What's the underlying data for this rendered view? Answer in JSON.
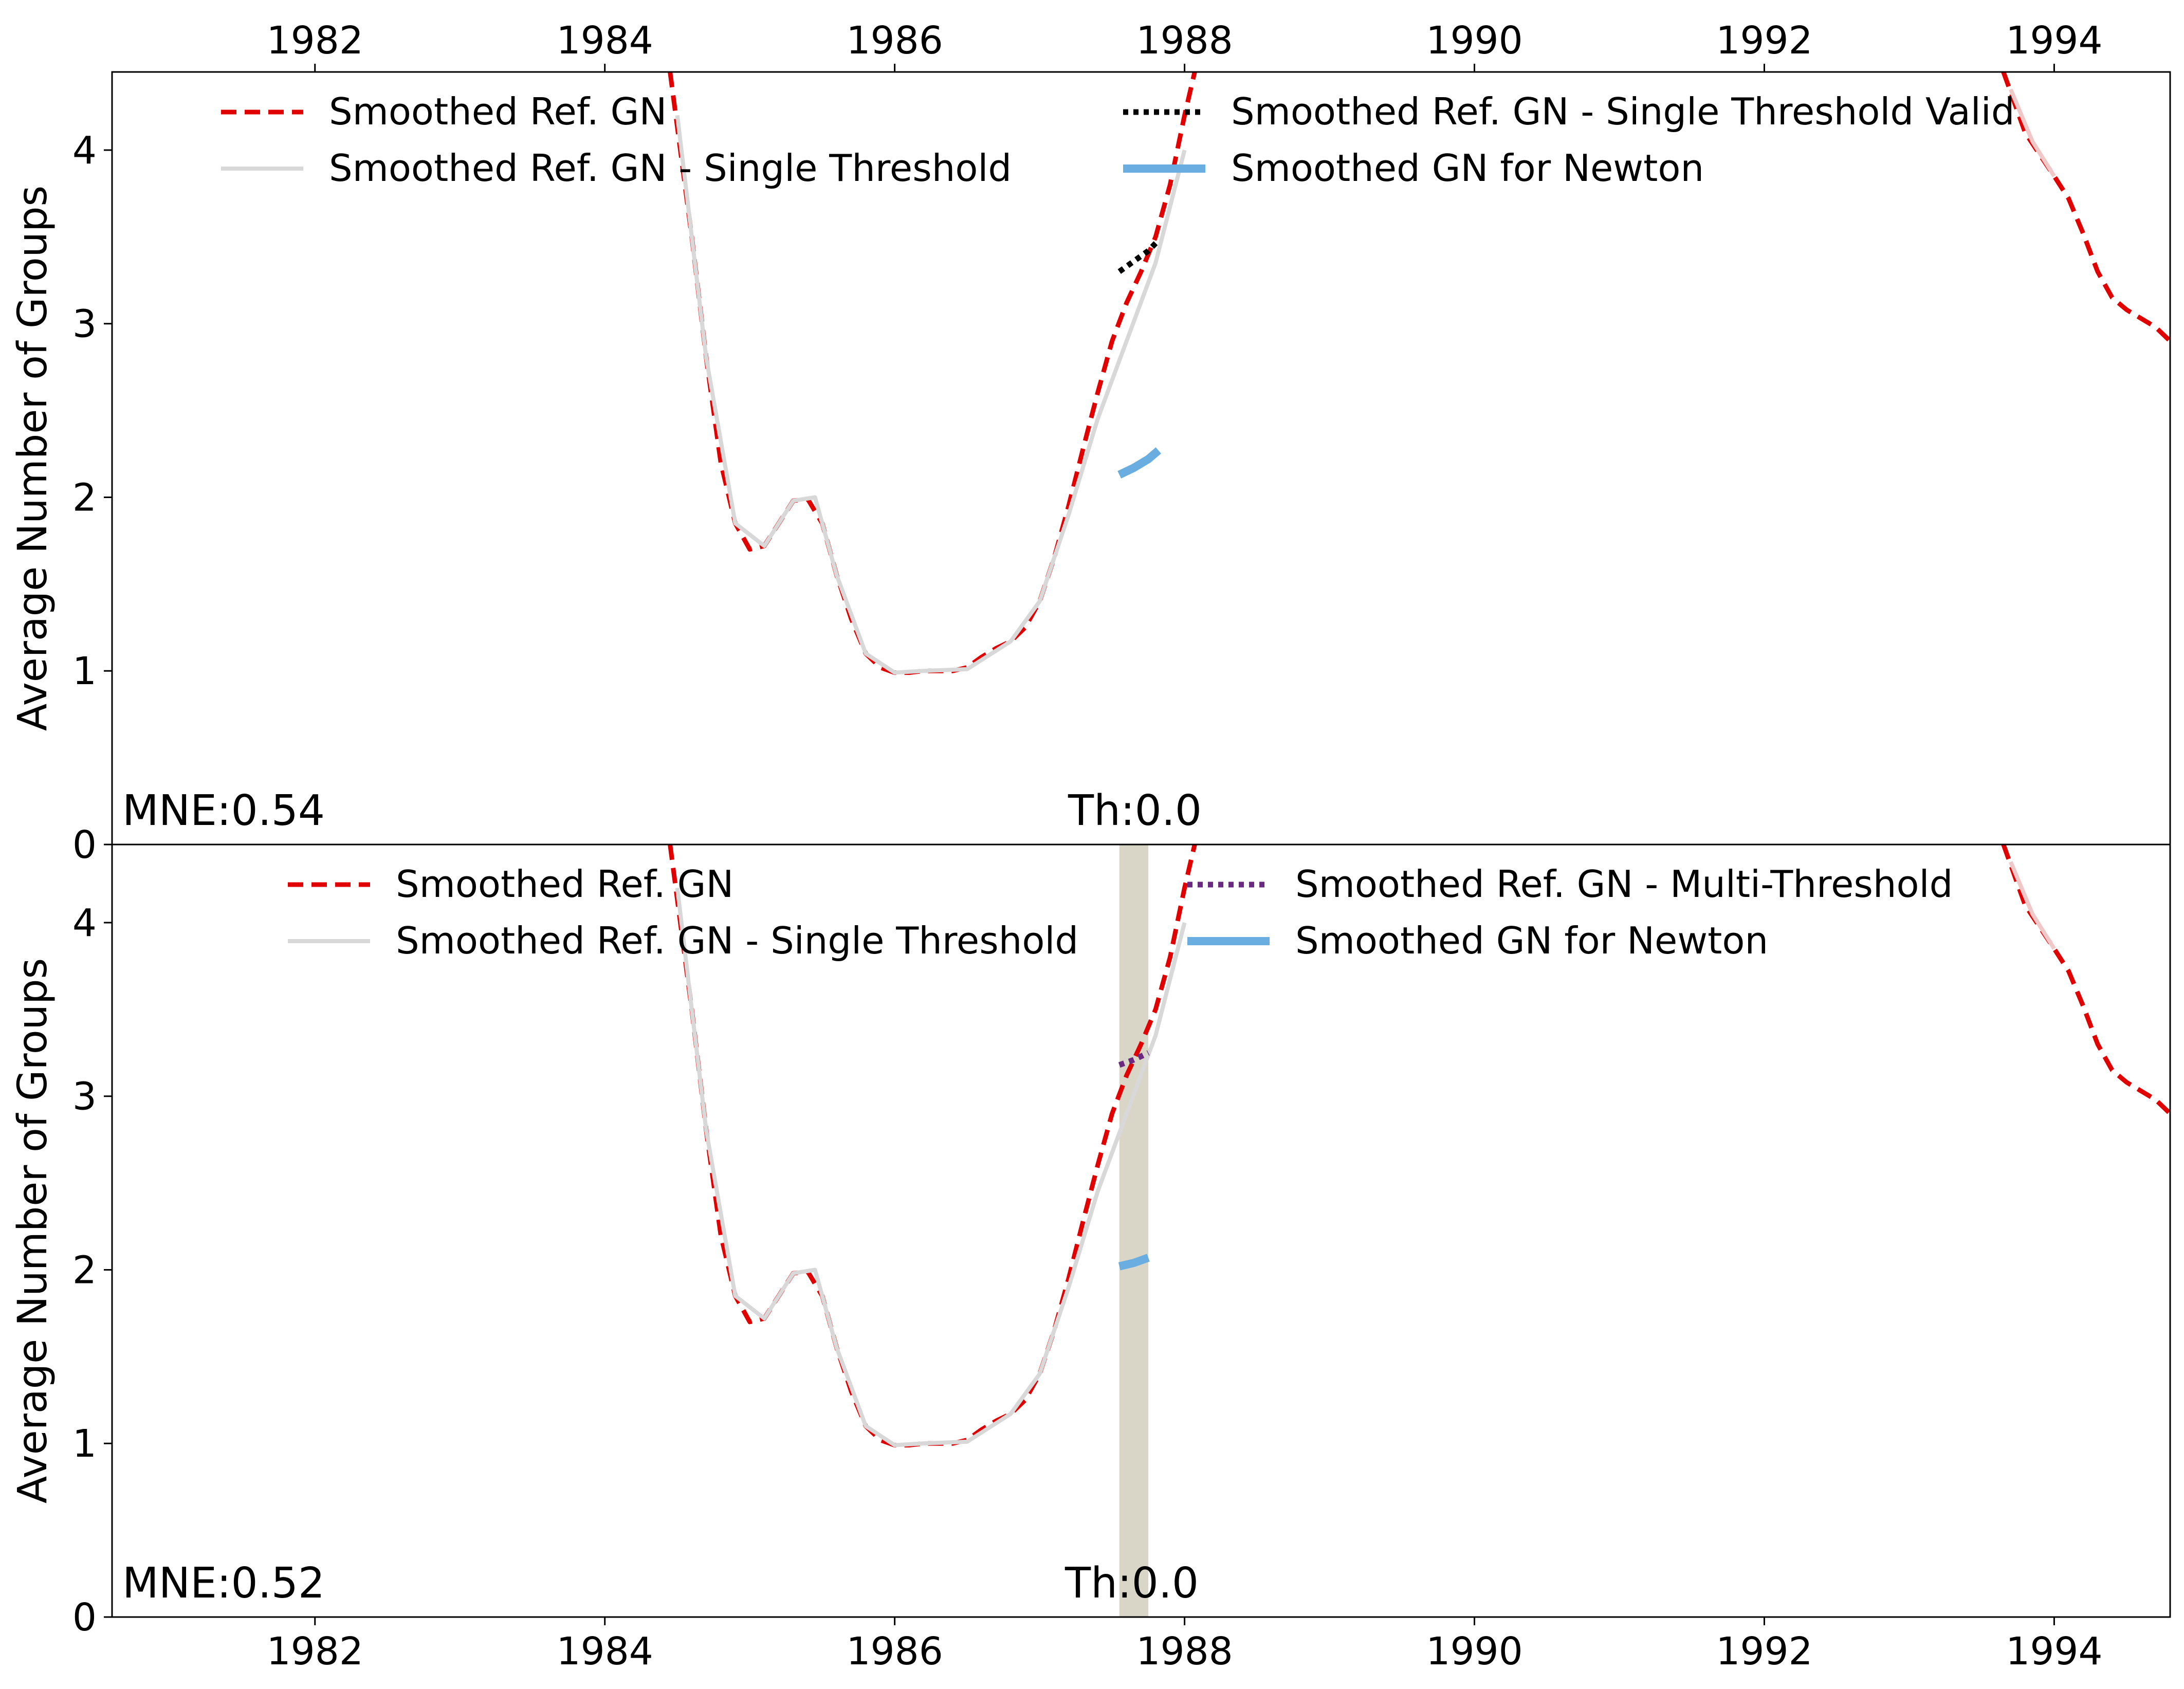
{
  "chart_data": [
    {
      "type": "line",
      "panel": "top",
      "xlabel": "",
      "ylabel": "Average Number of Groups",
      "xlim": [
        1980.6,
        1994.8
      ],
      "ylim": [
        0,
        4.45
      ],
      "xticks": [
        1982,
        1984,
        1986,
        1988,
        1990,
        1992,
        1994
      ],
      "yticks": [
        0,
        1,
        2,
        3,
        4
      ],
      "xtick_position": "top",
      "legend": {
        "placement": "upper center",
        "columns": 2,
        "entries": [
          {
            "label": "Smoothed Ref. GN",
            "style": "dashed",
            "color": "#e00000"
          },
          {
            "label": "Smoothed Ref. GN - Single Threshold Valid",
            "style": "dotted",
            "color": "#000000"
          },
          {
            "label": "Smoothed Ref. GN - Single Threshold",
            "style": "solid",
            "color": "#d8d8d8"
          },
          {
            "label": "Smoothed GN for Newton",
            "style": "solid-thick",
            "color": "#6aade0"
          }
        ]
      },
      "annotations": [
        {
          "text": "MNE:0.54",
          "placement": "bottom-left"
        },
        {
          "text": "Th:0.0",
          "placement": "bottom-center"
        }
      ],
      "series": [
        {
          "name": "Smoothed Ref. GN",
          "style": "dashed",
          "color": "#e00000",
          "x": [
            1984.45,
            1984.6,
            1984.7,
            1984.8,
            1984.9,
            1985.0,
            1985.1,
            1985.2,
            1985.3,
            1985.4,
            1985.5,
            1985.6,
            1985.7,
            1985.8,
            1985.9,
            1986.0,
            1986.1,
            1986.2,
            1986.3,
            1986.4,
            1986.5,
            1986.6,
            1986.7,
            1986.8,
            1986.9,
            1987.0,
            1987.1,
            1987.2,
            1987.3,
            1987.4,
            1987.5,
            1987.6,
            1987.7,
            1987.8,
            1987.9,
            1988.0,
            1988.07
          ],
          "y": [
            4.45,
            3.5,
            2.8,
            2.2,
            1.85,
            1.7,
            1.72,
            1.85,
            1.98,
            1.99,
            1.85,
            1.55,
            1.3,
            1.1,
            1.02,
            0.99,
            0.99,
            1.0,
            1.0,
            1.0,
            1.02,
            1.08,
            1.13,
            1.17,
            1.25,
            1.4,
            1.65,
            1.95,
            2.28,
            2.6,
            2.9,
            3.12,
            3.3,
            3.5,
            3.8,
            4.2,
            4.45
          ]
        },
        {
          "name": "Smoothed Ref. GN",
          "style": "dashed",
          "color": "#e00000",
          "x": [
            1993.65,
            1993.8,
            1994.0,
            1994.1,
            1994.2,
            1994.3,
            1994.4,
            1994.5,
            1994.6,
            1994.7,
            1994.8
          ],
          "y": [
            4.45,
            4.1,
            3.85,
            3.72,
            3.52,
            3.3,
            3.15,
            3.08,
            3.03,
            2.98,
            2.9
          ]
        },
        {
          "name": "Smoothed Ref. GN - Single Threshold",
          "style": "solid",
          "color": "#d8d8d8",
          "x": [
            1984.5,
            1984.7,
            1984.9,
            1985.1,
            1985.3,
            1985.45,
            1985.6,
            1985.8,
            1986.0,
            1986.2,
            1986.5,
            1986.8,
            1987.0,
            1987.2,
            1987.4,
            1987.6,
            1987.8,
            1988.0
          ],
          "y": [
            4.2,
            2.8,
            1.85,
            1.72,
            1.98,
            2.0,
            1.55,
            1.1,
            0.99,
            1.0,
            1.01,
            1.17,
            1.4,
            1.9,
            2.45,
            2.9,
            3.35,
            4.0
          ]
        },
        {
          "name": "Smoothed Ref. GN - Single Threshold",
          "style": "solid",
          "color": "#f0c8c8",
          "x": [
            1993.7,
            1993.85,
            1994.0
          ],
          "y": [
            4.35,
            4.05,
            3.85
          ]
        },
        {
          "name": "Smoothed Ref. GN - Single Threshold Valid",
          "style": "dotted",
          "color": "#000000",
          "x": [
            1987.55,
            1987.65,
            1987.75,
            1987.82
          ],
          "y": [
            3.3,
            3.36,
            3.42,
            3.48
          ]
        },
        {
          "name": "Smoothed GN for Newton",
          "style": "solid-thick",
          "color": "#6aade0",
          "x": [
            1987.55,
            1987.65,
            1987.75,
            1987.82
          ],
          "y": [
            2.13,
            2.17,
            2.22,
            2.27
          ]
        }
      ]
    },
    {
      "type": "line",
      "panel": "bottom",
      "xlabel": "",
      "ylabel": "Average Number of Groups",
      "xlim": [
        1980.6,
        1994.8
      ],
      "ylim": [
        0,
        4.45
      ],
      "xticks": [
        1982,
        1984,
        1986,
        1988,
        1990,
        1992,
        1994
      ],
      "yticks": [
        0,
        1,
        2,
        3,
        4
      ],
      "xtick_position": "bottom",
      "shaded_region": {
        "x": [
          1987.55,
          1987.75
        ],
        "color": "#d9d6c8"
      },
      "legend": {
        "placement": "upper center",
        "columns": 2,
        "entries": [
          {
            "label": "Smoothed Ref. GN",
            "style": "dashed",
            "color": "#e00000"
          },
          {
            "label": "Smoothed Ref. GN - Multi-Threshold",
            "style": "dotted",
            "color": "#6a2a80"
          },
          {
            "label": "Smoothed Ref. GN - Single Threshold",
            "style": "solid",
            "color": "#d8d8d8"
          },
          {
            "label": "Smoothed GN for Newton",
            "style": "solid-thick",
            "color": "#6aade0"
          }
        ]
      },
      "annotations": [
        {
          "text": "MNE:0.52",
          "placement": "bottom-left"
        },
        {
          "text": "Th:0.0",
          "placement": "bottom-center"
        }
      ],
      "series": [
        {
          "name": "Smoothed Ref. GN",
          "style": "dashed",
          "color": "#e00000",
          "x": [
            1984.45,
            1984.6,
            1984.7,
            1984.8,
            1984.9,
            1985.0,
            1985.1,
            1985.2,
            1985.3,
            1985.4,
            1985.5,
            1985.6,
            1985.7,
            1985.8,
            1985.9,
            1986.0,
            1986.1,
            1986.2,
            1986.3,
            1986.4,
            1986.5,
            1986.6,
            1986.7,
            1986.8,
            1986.9,
            1987.0,
            1987.1,
            1987.2,
            1987.3,
            1987.4,
            1987.5,
            1987.6,
            1987.7,
            1987.8,
            1987.9,
            1988.0,
            1988.07
          ],
          "y": [
            4.45,
            3.5,
            2.8,
            2.2,
            1.85,
            1.7,
            1.72,
            1.85,
            1.98,
            1.99,
            1.85,
            1.55,
            1.3,
            1.1,
            1.02,
            0.99,
            0.99,
            1.0,
            1.0,
            1.0,
            1.02,
            1.08,
            1.13,
            1.17,
            1.25,
            1.4,
            1.65,
            1.95,
            2.28,
            2.6,
            2.9,
            3.12,
            3.3,
            3.5,
            3.8,
            4.2,
            4.45
          ]
        },
        {
          "name": "Smoothed Ref. GN",
          "style": "dashed",
          "color": "#e00000",
          "x": [
            1993.65,
            1993.8,
            1994.0,
            1994.1,
            1994.2,
            1994.3,
            1994.4,
            1994.5,
            1994.6,
            1994.7,
            1994.8
          ],
          "y": [
            4.45,
            4.1,
            3.85,
            3.72,
            3.52,
            3.3,
            3.15,
            3.08,
            3.03,
            2.98,
            2.9
          ]
        },
        {
          "name": "Smoothed Ref. GN - Single Threshold",
          "style": "solid",
          "color": "#d8d8d8",
          "x": [
            1984.5,
            1984.7,
            1984.9,
            1985.1,
            1985.3,
            1985.45,
            1985.6,
            1985.8,
            1986.0,
            1986.2,
            1986.5,
            1986.8,
            1987.0,
            1987.2,
            1987.4,
            1987.6,
            1987.8,
            1988.0
          ],
          "y": [
            4.2,
            2.8,
            1.85,
            1.72,
            1.98,
            2.0,
            1.55,
            1.1,
            0.99,
            1.0,
            1.01,
            1.17,
            1.4,
            1.9,
            2.45,
            2.9,
            3.35,
            4.0
          ]
        },
        {
          "name": "Smoothed Ref. GN - Single Threshold",
          "style": "solid",
          "color": "#f0c8c8",
          "x": [
            1993.7,
            1993.85,
            1994.0
          ],
          "y": [
            4.35,
            4.05,
            3.85
          ]
        },
        {
          "name": "Smoothed Ref. GN - Multi-Threshold",
          "style": "dotted",
          "color": "#6a2a80",
          "x": [
            1987.55,
            1987.65,
            1987.75
          ],
          "y": [
            3.18,
            3.21,
            3.25
          ]
        },
        {
          "name": "Smoothed GN for Newton",
          "style": "solid-thick",
          "color": "#6aade0",
          "x": [
            1987.55,
            1987.65,
            1987.75
          ],
          "y": [
            2.02,
            2.04,
            2.07
          ]
        }
      ]
    }
  ]
}
